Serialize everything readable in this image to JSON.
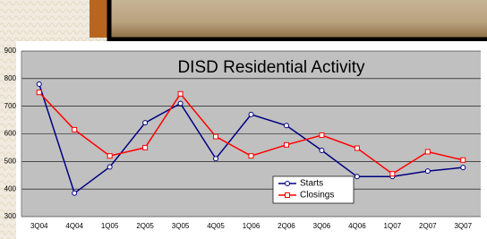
{
  "chart_data": {
    "type": "line",
    "title": "DISD Residential Activity",
    "categories": [
      "3Q04",
      "4Q04",
      "1Q05",
      "2Q05",
      "3Q05",
      "4Q05",
      "1Q06",
      "2Q06",
      "3Q06",
      "4Q06",
      "1Q07",
      "2Q07",
      "3Q07"
    ],
    "series": [
      {
        "name": "Starts",
        "color": "#000080",
        "marker": "circle",
        "values": [
          780,
          385,
          480,
          640,
          710,
          510,
          670,
          630,
          540,
          445,
          445,
          465,
          478
        ]
      },
      {
        "name": "Closings",
        "color": "#ff0000",
        "marker": "square",
        "values": [
          750,
          615,
          520,
          550,
          745,
          590,
          520,
          560,
          595,
          548,
          455,
          535,
          505
        ]
      }
    ],
    "ylim": [
      300,
      900
    ],
    "yticks": [
      300,
      400,
      500,
      600,
      700,
      800,
      900
    ],
    "grid": true,
    "legend": "lower-center"
  }
}
